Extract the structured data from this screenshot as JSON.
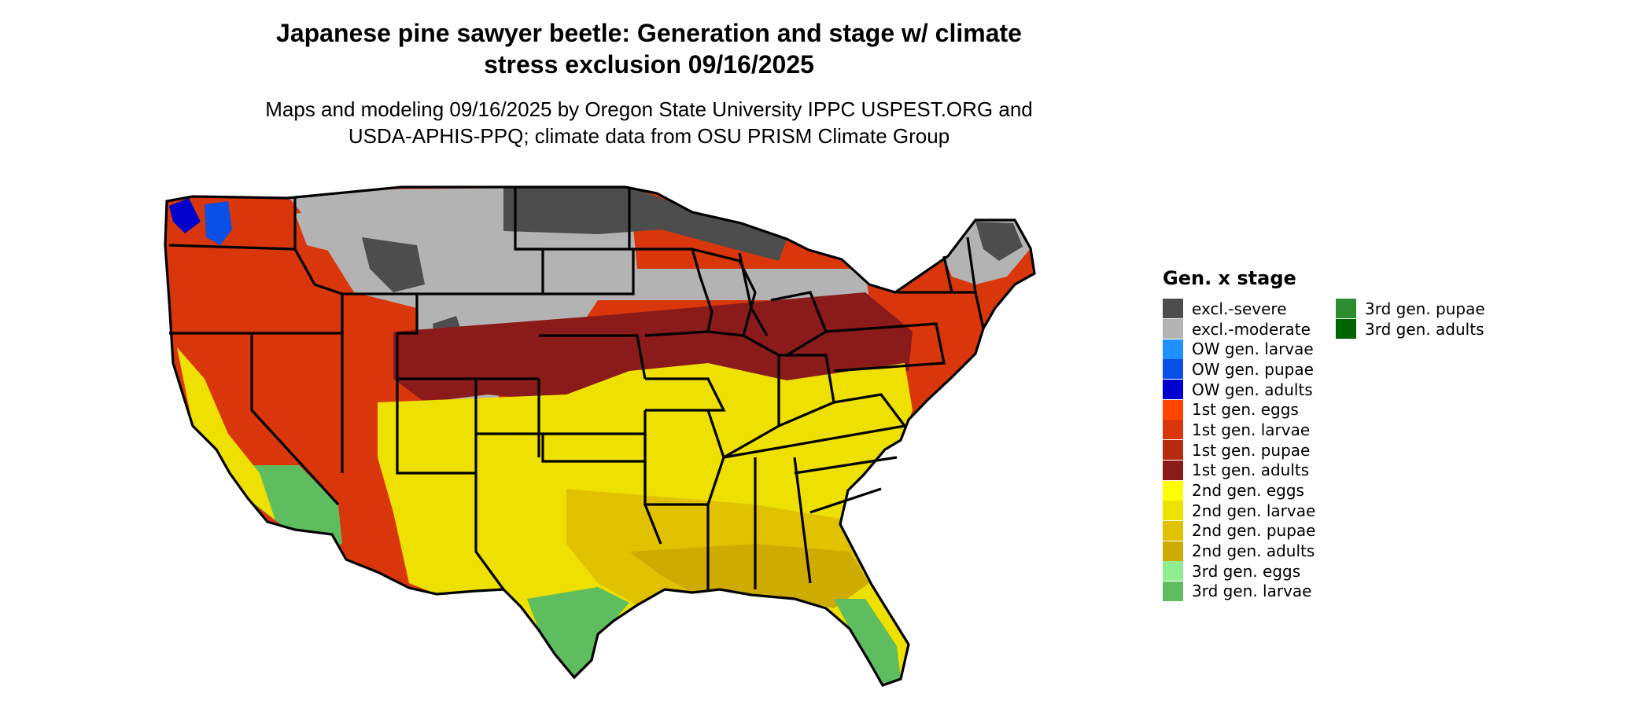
{
  "title": "Japanese pine sawyer beetle: Generation and stage w/ climate stress exclusion 09/16/2025",
  "title_lines": [
    "Japanese pine sawyer beetle: Generation and stage w/ climate",
    "stress exclusion 09/16/2025"
  ],
  "subtitle_lines": [
    "Maps and modeling 09/16/2025 by Oregon State University IPPC USPEST.ORG and",
    "USDA-APHIS-PPQ; climate data from OSU PRISM Climate Group"
  ],
  "legend": {
    "title": "Gen. x stage",
    "items": [
      {
        "label": "excl.-severe",
        "color": "#4d4d4d"
      },
      {
        "label": "excl.-moderate",
        "color": "#b3b3b3"
      },
      {
        "label": "OW gen. larvae",
        "color": "#1e90ff"
      },
      {
        "label": "OW gen. pupae",
        "color": "#0a50e6"
      },
      {
        "label": "OW gen. adults",
        "color": "#0000cd"
      },
      {
        "label": "1st gen. eggs",
        "color": "#ff4500"
      },
      {
        "label": "1st gen. larvae",
        "color": "#d9370b"
      },
      {
        "label": "1st gen. pupae",
        "color": "#b82a10"
      },
      {
        "label": "1st gen. adults",
        "color": "#8b1a1a"
      },
      {
        "label": "2nd gen. eggs",
        "color": "#ffff00"
      },
      {
        "label": "2nd gen. larvae",
        "color": "#eee000"
      },
      {
        "label": "2nd gen. pupae",
        "color": "#e0c200"
      },
      {
        "label": "2nd gen. adults",
        "color": "#cdab00"
      },
      {
        "label": "3rd gen. eggs",
        "color": "#90ee90"
      },
      {
        "label": "3rd gen. larvae",
        "color": "#5ebd5e"
      },
      {
        "label": "3rd gen. pupae",
        "color": "#2e8b2e"
      },
      {
        "label": "3rd gen. adults",
        "color": "#006400"
      }
    ]
  }
}
